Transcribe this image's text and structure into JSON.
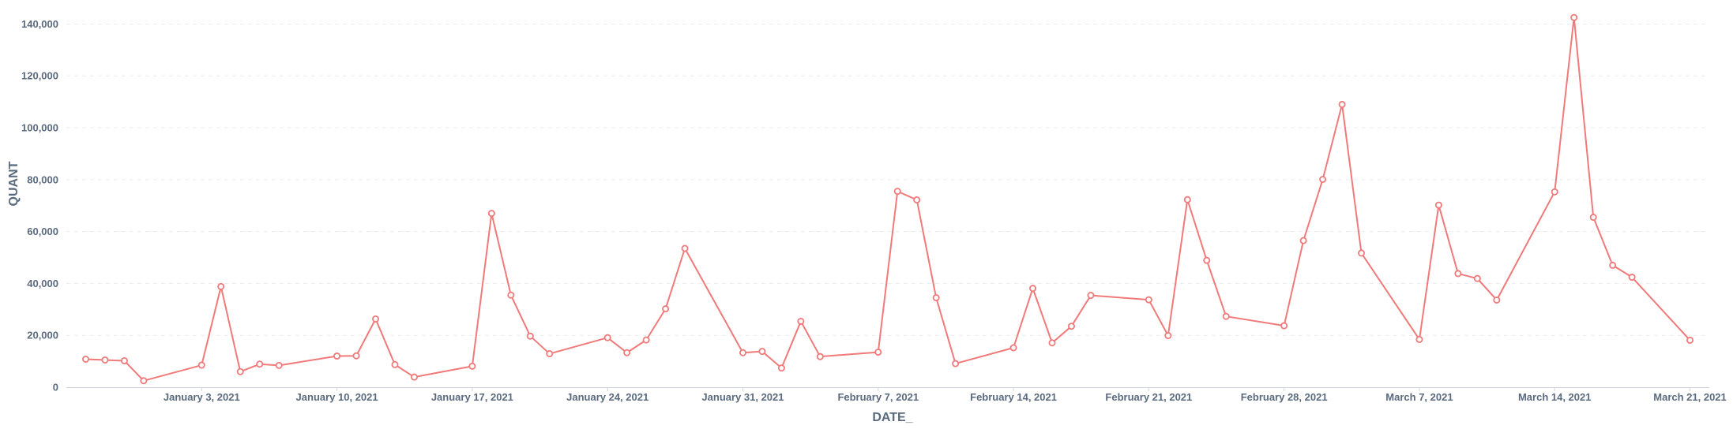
{
  "chart_data": {
    "type": "line",
    "xlabel": "DATE_",
    "ylabel": "QUANT",
    "ylim": [
      0,
      145000
    ],
    "xlim": [
      "2020-12-27",
      "2021-03-22"
    ],
    "yticks": [
      0,
      20000,
      40000,
      60000,
      80000,
      100000,
      120000,
      140000
    ],
    "ytick_labels": [
      "0",
      "20,000",
      "40,000",
      "60,000",
      "80,000",
      "100,000",
      "120,000",
      "140,000"
    ],
    "xticks": [
      "2021-01-03",
      "2021-01-10",
      "2021-01-17",
      "2021-01-24",
      "2021-01-31",
      "2021-02-07",
      "2021-02-14",
      "2021-02-21",
      "2021-02-28",
      "2021-03-07",
      "2021-03-14",
      "2021-03-21"
    ],
    "xtick_labels": [
      "January 3, 2021",
      "January 10, 2021",
      "January 17, 2021",
      "January 24, 2021",
      "January 31, 2021",
      "February 7, 2021",
      "February 14, 2021",
      "February 21, 2021",
      "February 28, 2021",
      "March 7, 2021",
      "March 14, 2021",
      "March 21, 2021"
    ],
    "grid": true,
    "line_color": "#f07a7a",
    "series": [
      {
        "x": [
          "2020-12-28",
          "2020-12-29",
          "2020-12-30",
          "2020-12-31",
          "2021-01-03",
          "2021-01-04",
          "2021-01-05",
          "2021-01-06",
          "2021-01-07",
          "2021-01-10",
          "2021-01-11",
          "2021-01-12",
          "2021-01-13",
          "2021-01-14",
          "2021-01-17",
          "2021-01-18",
          "2021-01-19",
          "2021-01-20",
          "2021-01-21",
          "2021-01-24",
          "2021-01-25",
          "2021-01-26",
          "2021-01-27",
          "2021-01-28",
          "2021-01-31",
          "2021-02-01",
          "2021-02-02",
          "2021-02-03",
          "2021-02-04",
          "2021-02-07",
          "2021-02-08",
          "2021-02-09",
          "2021-02-10",
          "2021-02-11",
          "2021-02-14",
          "2021-02-15",
          "2021-02-16",
          "2021-02-17",
          "2021-02-18",
          "2021-02-21",
          "2021-02-22",
          "2021-02-23",
          "2021-02-24",
          "2021-02-25",
          "2021-02-28",
          "2021-03-01",
          "2021-03-02",
          "2021-03-03",
          "2021-03-04",
          "2021-03-07",
          "2021-03-08",
          "2021-03-09",
          "2021-03-10",
          "2021-03-11",
          "2021-03-14",
          "2021-03-15",
          "2021-03-16",
          "2021-03-17",
          "2021-03-18",
          "2021-03-21"
        ],
        "values": [
          10800,
          10500,
          10200,
          2500,
          8500,
          38800,
          6000,
          8900,
          8400,
          12000,
          12100,
          26300,
          8700,
          3900,
          8100,
          67000,
          35500,
          19700,
          12900,
          19100,
          13300,
          18200,
          30200,
          53500,
          13300,
          13800,
          7400,
          25400,
          11800,
          13500,
          75500,
          72200,
          34500,
          9100,
          15200,
          38100,
          17100,
          23500,
          35400,
          33700,
          19900,
          72300,
          48900,
          27300,
          23700,
          56500,
          80100,
          109000,
          51700,
          18400,
          70200,
          43800,
          41900,
          33600,
          75300,
          142500,
          65500,
          47000,
          42400,
          18100
        ]
      }
    ]
  }
}
